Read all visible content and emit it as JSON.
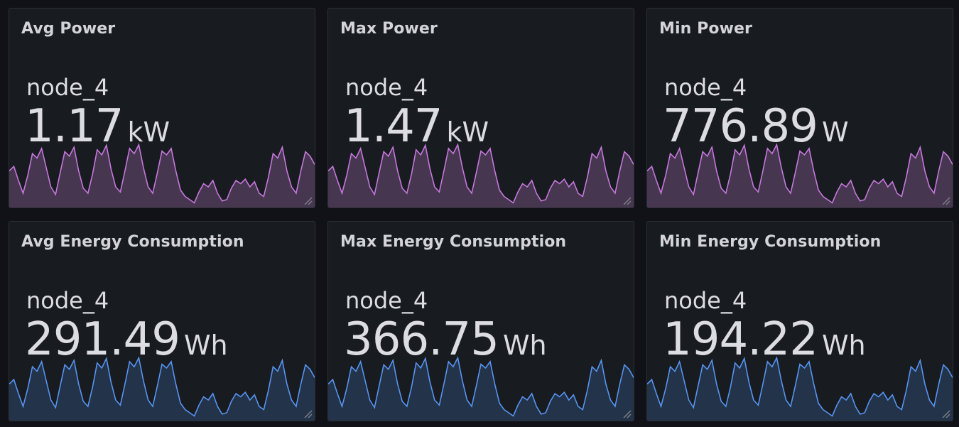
{
  "colors": {
    "power_line": "#c678dd",
    "power_fill": "#46364f",
    "energy_line": "#5794f2",
    "energy_fill": "#233349"
  },
  "panels": [
    {
      "title": "Avg Power",
      "series": "node_4",
      "value": "1.17",
      "unit": "kW",
      "color": "power"
    },
    {
      "title": "Max Power",
      "series": "node_4",
      "value": "1.47",
      "unit": "kW",
      "color": "power"
    },
    {
      "title": "Min Power",
      "series": "node_4",
      "value": "776.89",
      "unit": "W",
      "color": "power"
    },
    {
      "title": "Avg Energy Consumption",
      "series": "node_4",
      "value": "291.49",
      "unit": "Wh",
      "color": "energy"
    },
    {
      "title": "Max Energy Consumption",
      "series": "node_4",
      "value": "366.75",
      "unit": "Wh",
      "color": "energy"
    },
    {
      "title": "Min Energy Consumption",
      "series": "node_4",
      "value": "194.22",
      "unit": "Wh",
      "color": "energy"
    }
  ],
  "sparkline_values": [
    0.55,
    0.62,
    0.4,
    0.2,
    0.48,
    0.82,
    0.75,
    0.9,
    0.6,
    0.3,
    0.18,
    0.52,
    0.85,
    0.78,
    0.92,
    0.55,
    0.28,
    0.2,
    0.5,
    0.88,
    0.8,
    0.95,
    0.58,
    0.3,
    0.22,
    0.55,
    0.9,
    0.82,
    0.96,
    0.6,
    0.3,
    0.2,
    0.52,
    0.86,
    0.8,
    0.9,
    0.55,
    0.25,
    0.15,
    0.1,
    0.05,
    0.22,
    0.35,
    0.3,
    0.4,
    0.2,
    0.08,
    0.1,
    0.28,
    0.4,
    0.35,
    0.42,
    0.3,
    0.38,
    0.2,
    0.15,
    0.45,
    0.82,
    0.75,
    0.92,
    0.55,
    0.3,
    0.2,
    0.55,
    0.85,
    0.78,
    0.65
  ]
}
